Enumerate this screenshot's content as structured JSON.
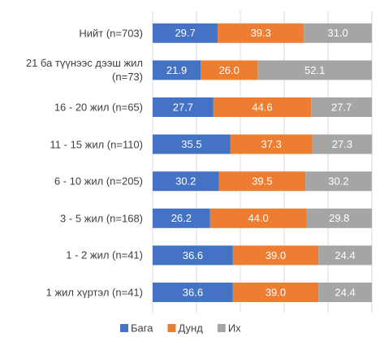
{
  "chart_data": {
    "type": "stacked_bar_horizontal",
    "categories": [
      "Нийт (n=703)",
      "21 ба түүнээс дээш жил (n=73)",
      "16 - 20 жил (n=65)",
      "11 - 15 жил (n=110)",
      "6 - 10 жил (n=205)",
      "3 - 5 жил (n=168)",
      "1 - 2 жил (n=41)",
      "1 жил хүртэл (n=41)"
    ],
    "series": [
      {
        "name": "Бага",
        "color": "#4472c4",
        "values": [
          29.7,
          21.9,
          27.7,
          35.5,
          30.2,
          26.2,
          36.6,
          36.6
        ],
        "value_labels": [
          "29.7",
          "21.9",
          "27.7",
          "35.5",
          "30.2",
          "26.2",
          "36.6",
          "36.6"
        ]
      },
      {
        "name": "Дунд",
        "color": "#ed7d31",
        "values": [
          39.3,
          26.0,
          44.6,
          37.3,
          39.5,
          44.0,
          39.0,
          39.0
        ],
        "value_labels": [
          "39.3",
          "26.0",
          "44.6",
          "37.3",
          "39.5",
          "44.0",
          "39.0",
          "39.0"
        ]
      },
      {
        "name": "Их",
        "color": "#a5a5a5",
        "values": [
          31.0,
          52.1,
          27.7,
          27.3,
          30.2,
          29.8,
          24.4,
          24.4
        ],
        "value_labels": [
          "31.0",
          "52.1",
          "27.7",
          "27.3",
          "30.2",
          "29.8",
          "24.4",
          "24.4"
        ]
      }
    ],
    "xlim": [
      0,
      100
    ],
    "xticks": [
      0,
      20,
      40,
      60,
      80,
      100
    ],
    "grid": true,
    "legend": "bottom"
  }
}
